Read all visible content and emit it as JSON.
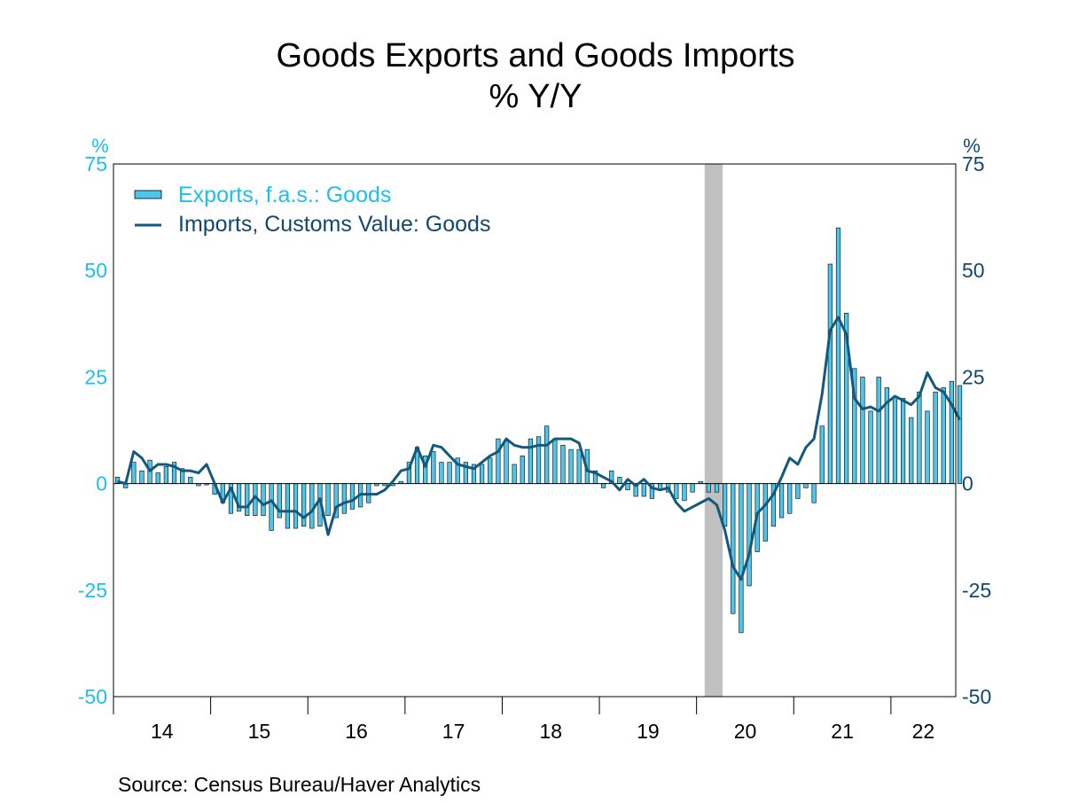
{
  "chart_data": {
    "type": "bar+line",
    "title": "Goods Exports and Goods Imports",
    "subtitle": "% Y/Y",
    "left_axis_unit": "%",
    "right_axis_unit": "%",
    "ylim": [
      -50,
      75
    ],
    "yticks": [
      "75",
      "50",
      "25",
      "0",
      "-25",
      "-50"
    ],
    "x_tick_labels": [
      "14",
      "15",
      "16",
      "17",
      "18",
      "19",
      "20",
      "21",
      "22"
    ],
    "x_range_months": "Jan 2014 - Jul 2022",
    "recession_shading": {
      "start": "Feb 2020",
      "end": "Apr 2020"
    },
    "grid": false,
    "legend_position": "top-left",
    "colors": {
      "left_axis": "#1fbfea",
      "right_axis": "#13486e",
      "exports": "#4cc6ea",
      "imports": "#13587d",
      "recession": "#c0c0c0"
    },
    "series": [
      {
        "name": "Exports, f.a.s.: Goods",
        "kind": "bar",
        "axis": "left",
        "values": [
          1.5,
          -1.0,
          5.0,
          3.0,
          5.5,
          2.5,
          4.0,
          5.0,
          3.5,
          1.5,
          -0.5,
          -0.3,
          -2.5,
          -4.5,
          -7.0,
          -6.5,
          -7.5,
          -7.5,
          -7.5,
          -11.0,
          -8.0,
          -10.5,
          -10.5,
          -10.0,
          -10.5,
          -10.0,
          -7.5,
          -8.0,
          -7.0,
          -6.0,
          -5.5,
          -4.5,
          -0.5,
          -0.5,
          -0.5,
          0.5,
          5.0,
          8.5,
          6.5,
          7.5,
          5.0,
          5.0,
          6.0,
          5.0,
          4.5,
          4.5,
          6.0,
          10.5,
          10.0,
          4.5,
          6.5,
          10.5,
          11.0,
          13.5,
          10.5,
          9.0,
          8.0,
          8.0,
          8.0,
          3.0,
          -1.0,
          3.0,
          1.5,
          -1.5,
          -3.0,
          -3.0,
          -3.5,
          -1.5,
          -2.0,
          -3.5,
          -4.0,
          -2.0,
          0.5,
          -2.0,
          -2.0,
          -10.0,
          -30.5,
          -35.0,
          -24.0,
          -16.0,
          -13.5,
          -10.0,
          -8.0,
          -7.0,
          -3.5,
          -1.0,
          -4.5,
          13.5,
          51.5,
          60.0,
          40.0,
          27.0,
          25.0,
          17.0,
          25.0,
          22.5,
          20.5,
          20.0,
          15.5,
          21.5,
          17.0,
          21.5,
          22.5,
          24.0,
          23.0
        ]
      },
      {
        "name": "Imports, Customs Value: Goods",
        "kind": "line",
        "axis": "right",
        "values": [
          0.5,
          0.0,
          7.5,
          6.0,
          3.0,
          4.5,
          4.5,
          4.0,
          3.0,
          3.0,
          2.5,
          4.5,
          0.0,
          -4.5,
          -1.0,
          -5.5,
          -5.5,
          -3.0,
          -5.0,
          -4.0,
          -6.5,
          -6.5,
          -6.5,
          -8.0,
          -6.5,
          -3.5,
          -12.0,
          -5.5,
          -4.5,
          -4.0,
          -2.5,
          -2.5,
          -2.5,
          -1.5,
          0.5,
          3.0,
          3.5,
          8.5,
          4.0,
          9.0,
          8.5,
          6.5,
          4.5,
          4.0,
          3.5,
          5.0,
          6.5,
          7.5,
          10.5,
          9.0,
          8.5,
          8.5,
          9.0,
          9.0,
          10.5,
          10.5,
          10.5,
          9.5,
          3.0,
          2.5,
          1.5,
          0.5,
          -1.5,
          1.0,
          -0.5,
          1.0,
          -1.0,
          -1.5,
          -1.0,
          -4.5,
          -6.5,
          -5.5,
          -4.5,
          -3.5,
          -5.0,
          -11.0,
          -19.5,
          -22.5,
          -16.5,
          -7.0,
          -5.0,
          -2.5,
          1.5,
          6.0,
          4.5,
          8.5,
          10.5,
          21.0,
          36.0,
          39.0,
          35.0,
          20.0,
          17.5,
          18.0,
          17.0,
          19.0,
          20.5,
          19.5,
          18.5,
          20.5,
          26.0,
          22.5,
          21.5,
          18.5,
          15.0
        ]
      }
    ],
    "source": "Source:  Census Bureau/Haver Analytics"
  }
}
